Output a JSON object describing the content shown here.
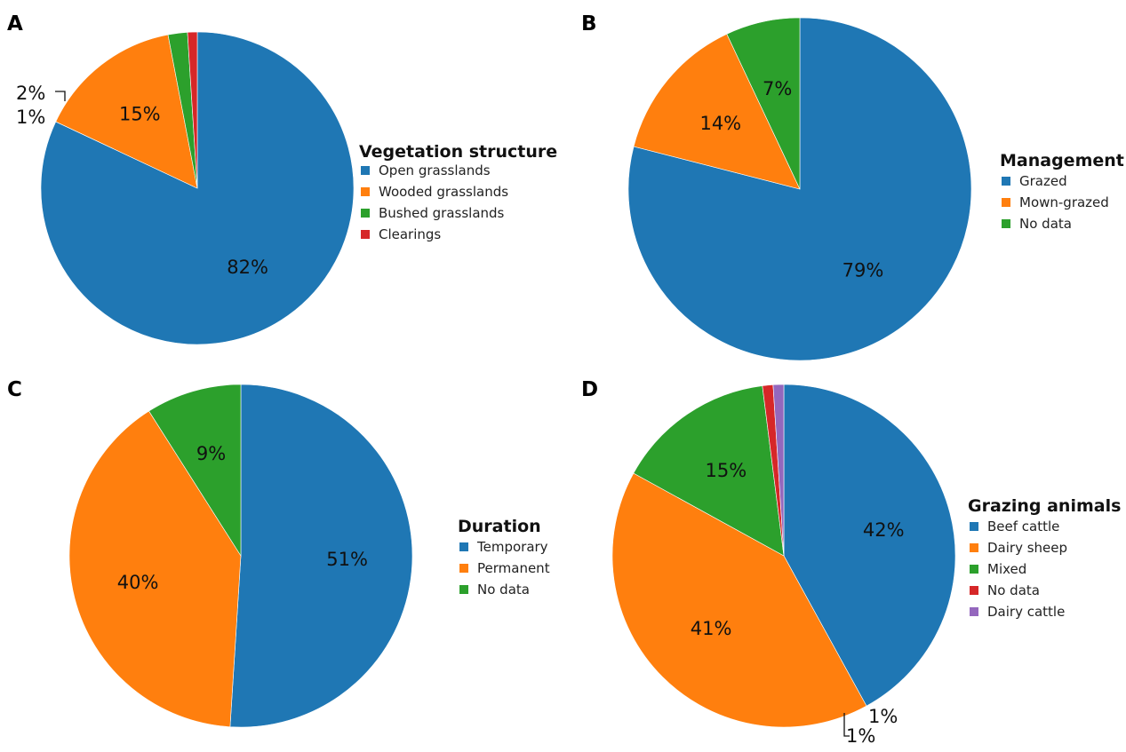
{
  "chart_data": [
    {
      "panel": "A",
      "type": "pie",
      "title": "Vegetation structure",
      "legend_placement": "right",
      "series": [
        {
          "name": "Open grasslands",
          "value": 82,
          "label": "82%",
          "color": "#1f77b4"
        },
        {
          "name": "Wooded grasslands",
          "value": 15,
          "label": "15%",
          "color": "#ff7f0e"
        },
        {
          "name": "Bushed grasslands",
          "value": 2,
          "label": "2%",
          "color": "#2ca02c"
        },
        {
          "name": "Clearings",
          "value": 1,
          "label": "1%",
          "color": "#d62728"
        }
      ]
    },
    {
      "panel": "B",
      "type": "pie",
      "title": "Management",
      "legend_placement": "right",
      "series": [
        {
          "name": "Grazed",
          "value": 79,
          "label": "79%",
          "color": "#1f77b4"
        },
        {
          "name": "Mown-grazed",
          "value": 14,
          "label": "14%",
          "color": "#ff7f0e"
        },
        {
          "name": "No data",
          "value": 7,
          "label": "7%",
          "color": "#2ca02c"
        }
      ]
    },
    {
      "panel": "C",
      "type": "pie",
      "title": "Duration",
      "legend_placement": "right",
      "series": [
        {
          "name": "Temporary",
          "value": 51,
          "label": "51%",
          "color": "#1f77b4"
        },
        {
          "name": "Permanent",
          "value": 40,
          "label": "40%",
          "color": "#ff7f0e"
        },
        {
          "name": "No data",
          "value": 9,
          "label": "9%",
          "color": "#2ca02c"
        }
      ]
    },
    {
      "panel": "D",
      "type": "pie",
      "title": "Grazing animals",
      "legend_placement": "right",
      "series": [
        {
          "name": "Beef cattle",
          "value": 42,
          "label": "42%",
          "color": "#1f77b4"
        },
        {
          "name": "Dairy sheep",
          "value": 41,
          "label": "41%",
          "color": "#ff7f0e"
        },
        {
          "name": "Mixed",
          "value": 15,
          "label": "15%",
          "color": "#2ca02c"
        },
        {
          "name": "No data",
          "value": 1,
          "label": "1%",
          "color": "#d62728"
        },
        {
          "name": "Dairy cattle",
          "value": 1,
          "label": "1%",
          "color": "#9467bd"
        }
      ]
    }
  ]
}
